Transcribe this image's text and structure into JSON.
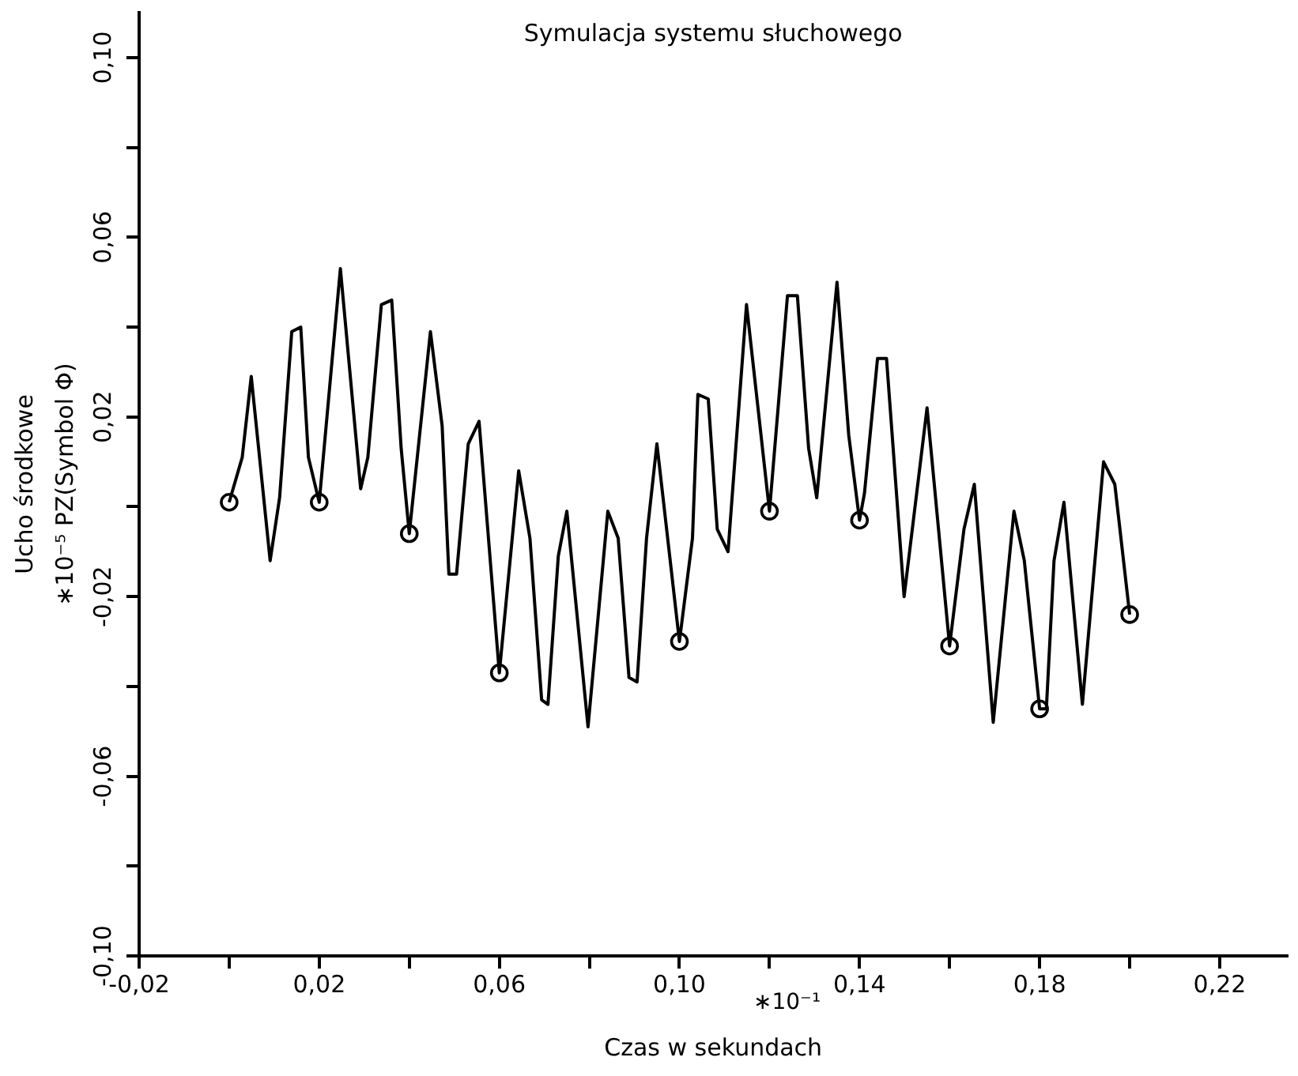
{
  "chart_data": {
    "type": "line",
    "title": "Symulacja systemu słuchowego",
    "xlabel": "Czas w sekundach",
    "ylabel": "Ucho środkowe\n∗10⁻⁵ PZ(Symbol Φ)",
    "annotations": [
      "∗10⁻¹"
    ],
    "xlim": [
      -0.02,
      0.235
    ],
    "ylim": [
      -0.1,
      0.11
    ],
    "xticks": [
      {
        "value": -0.02,
        "label": "-0,02"
      },
      {
        "value": 0,
        "label": null
      },
      {
        "value": 0.02,
        "label": "0,02"
      },
      {
        "value": 0.04,
        "label": null
      },
      {
        "value": 0.06,
        "label": "0,06"
      },
      {
        "value": 0.08,
        "label": null
      },
      {
        "value": 0.1,
        "label": "0,10"
      },
      {
        "value": 0.12,
        "label": null
      },
      {
        "value": 0.14,
        "label": "0,14"
      },
      {
        "value": 0.16,
        "label": null
      },
      {
        "value": 0.18,
        "label": "0,18"
      },
      {
        "value": 0.2,
        "label": null
      },
      {
        "value": 0.22,
        "label": "0,22"
      }
    ],
    "yticks": [
      {
        "value": -0.1,
        "label": "-0,10"
      },
      {
        "value": -0.08,
        "label": null
      },
      {
        "value": -0.06,
        "label": "-0,06"
      },
      {
        "value": -0.04,
        "label": null
      },
      {
        "value": -0.02,
        "label": "-0,02"
      },
      {
        "value": 0,
        "label": null
      },
      {
        "value": 0.02,
        "label": "0,02"
      },
      {
        "value": 0.04,
        "label": null
      },
      {
        "value": 0.06,
        "label": "0,06"
      },
      {
        "value": 0.08,
        "label": null
      },
      {
        "value": 0.1,
        "label": "0,10"
      }
    ],
    "series": [
      {
        "type": "line",
        "color": "#000000",
        "marker": "none",
        "line_style": "solid",
        "x": [
          0,
          0.0029,
          0.0049,
          0.0091,
          0.0112,
          0.0139,
          0.0159,
          0.0176,
          0.02,
          0.0247,
          0.0292,
          0.0308,
          0.0338,
          0.0361,
          0.0382,
          0.04,
          0.0447,
          0.0473,
          0.0488,
          0.0505,
          0.0531,
          0.0555,
          0.06,
          0.0643,
          0.0668,
          0.0694,
          0.0708,
          0.0731,
          0.075,
          0.0797,
          0.0841,
          0.0864,
          0.0888,
          0.0906,
          0.0927,
          0.095,
          0.1,
          0.1029,
          0.1041,
          0.1064,
          0.1084,
          0.1108,
          0.1149,
          0.12,
          0.124,
          0.1262,
          0.1287,
          0.1305,
          0.135,
          0.1376,
          0.14,
          0.1411,
          0.144,
          0.146,
          0.1499,
          0.155,
          0.16,
          0.1632,
          0.1655,
          0.1697,
          0.1743,
          0.1766,
          0.18,
          0.1815,
          0.1832,
          0.1854,
          0.1895,
          0.1942,
          0.1967,
          0.2
        ],
        "values": [
          0.001,
          0.011,
          0.029,
          -0.012,
          0.002,
          0.039,
          0.04,
          0.011,
          0.001,
          0.053,
          0.004,
          0.011,
          0.045,
          0.046,
          0.013,
          -0.006,
          0.039,
          0.018,
          -0.015,
          -0.015,
          0.014,
          0.019,
          -0.037,
          0.008,
          -0.007,
          -0.043,
          -0.044,
          -0.011,
          -0.001,
          -0.049,
          -0.001,
          -0.007,
          -0.038,
          -0.039,
          -0.007,
          0.014,
          -0.03,
          -0.007,
          0.025,
          0.024,
          -0.005,
          -0.01,
          0.045,
          -0.001,
          0.047,
          0.047,
          0.013,
          0.002,
          0.05,
          0.016,
          -0.003,
          0.003,
          0.033,
          0.033,
          -0.02,
          0.022,
          -0.031,
          -0.005,
          0.005,
          -0.048,
          -0.001,
          -0.012,
          -0.045,
          -0.045,
          -0.012,
          0.001,
          -0.044,
          0.01,
          0.005,
          -0.024
        ]
      },
      {
        "type": "scatter",
        "color": "#000000",
        "marker": "circle",
        "x": [
          0,
          0.02,
          0.04,
          0.06,
          0.1,
          0.12,
          0.14,
          0.16,
          0.18,
          0.2
        ],
        "values": [
          0.001,
          0.001,
          -0.006,
          -0.037,
          -0.03,
          -0.001,
          -0.003,
          -0.031,
          -0.045,
          -0.024
        ]
      }
    ]
  }
}
